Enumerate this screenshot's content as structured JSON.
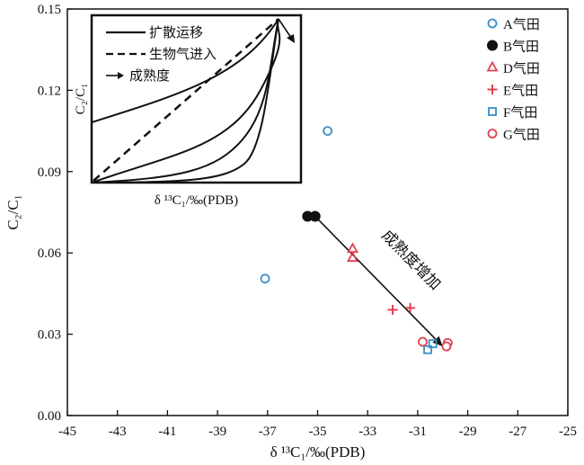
{
  "chart_data": {
    "type": "scatter",
    "xlabel": "δ ¹³C₁/‰(PDB)",
    "ylabel": "C₂/C₁",
    "xlim": [
      -45,
      -25
    ],
    "ylim": [
      0,
      0.15
    ],
    "x_ticks": [
      -45,
      -43,
      -41,
      -39,
      -37,
      -35,
      -33,
      -31,
      -29,
      -27,
      -25
    ],
    "y_ticks": [
      0,
      0.03,
      0.06,
      0.09,
      0.12,
      0.15
    ],
    "x_tick_labels": [
      "-45",
      "-43",
      "-41",
      "-39",
      "-37",
      "-35",
      "-33",
      "-31",
      "-29",
      "-27",
      "-25"
    ],
    "y_tick_labels": [
      "0.00",
      "0.03",
      "0.06",
      "0.09",
      "0.12",
      "0.15"
    ],
    "grid": false,
    "legend_position": "top-right",
    "series": [
      {
        "name": "A气田",
        "marker": "circle-open",
        "color": "#3a8fc8",
        "points": [
          [
            -34.6,
            0.105
          ],
          [
            -37.1,
            0.0505
          ]
        ]
      },
      {
        "name": "B气田",
        "marker": "circle-filled",
        "color": "#111111",
        "points": [
          [
            -35.4,
            0.0735
          ],
          [
            -35.1,
            0.0735
          ]
        ]
      },
      {
        "name": "D气田",
        "marker": "triangle-open",
        "color": "#e0404f",
        "points": [
          [
            -33.6,
            0.0615
          ],
          [
            -33.6,
            0.0582
          ]
        ]
      },
      {
        "name": "E气田",
        "marker": "plus",
        "color": "#e0404f",
        "points": [
          [
            -32.0,
            0.039
          ],
          [
            -31.3,
            0.0397
          ]
        ]
      },
      {
        "name": "F气田",
        "marker": "square-open",
        "color": "#3a8fc8",
        "points": [
          [
            -30.4,
            0.0265
          ],
          [
            -30.6,
            0.0243
          ]
        ]
      },
      {
        "name": "G气田",
        "marker": "circle-open",
        "color": "#e0404f",
        "points": [
          [
            -30.8,
            0.0272
          ],
          [
            -29.8,
            0.0268
          ],
          [
            -29.85,
            0.0255
          ]
        ]
      }
    ],
    "trend_arrow": {
      "from": [
        -35.1,
        0.0735
      ],
      "to": [
        -30.0,
        0.0255
      ]
    },
    "annotation": "成熟度增加",
    "inset": {
      "xlabel": "δ ¹³C₁/‰(PDB)",
      "ylabel": "C₂/C₁",
      "legend": [
        {
          "label": "扩散运移",
          "style": "solid"
        },
        {
          "label": "生物气进入",
          "style": "dashed"
        },
        {
          "label": "成熟度",
          "style": "arrow"
        }
      ]
    }
  }
}
